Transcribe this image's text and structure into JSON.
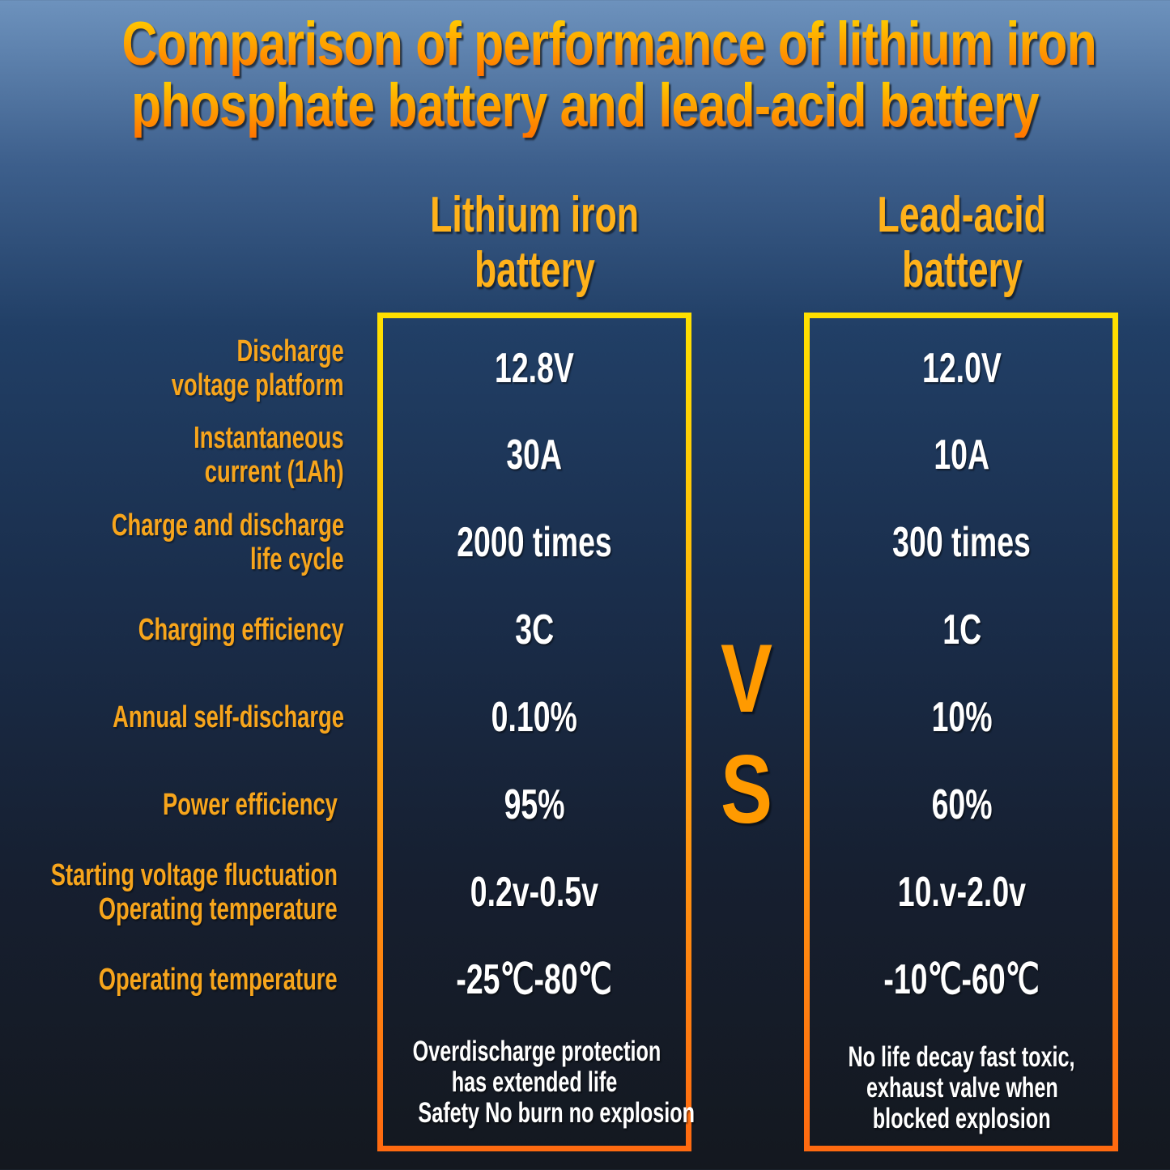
{
  "title": {
    "line1": "Comparison of performance of lithium iron",
    "line2": "phosphate battery and lead-acid battery"
  },
  "columns": [
    {
      "line1": "Lithium iron",
      "line2": "battery"
    },
    {
      "line1": "Lead-acid",
      "line2": "battery"
    }
  ],
  "vs": {
    "v": "V",
    "s": "S"
  },
  "rows": [
    {
      "label": [
        "Discharge",
        "voltage platform"
      ],
      "lithium": "12.8V",
      "lead": "12.0V"
    },
    {
      "label": [
        "Instantaneous",
        "current (1Ah)"
      ],
      "lithium": "30A",
      "lead": "10A"
    },
    {
      "label": [
        "Charge and discharge",
        "life cycle"
      ],
      "lithium": "2000 times",
      "lead": "300 times"
    },
    {
      "label": [
        "Charging efficiency"
      ],
      "lithium": "3C",
      "lead": "1C"
    },
    {
      "label": [
        "Annual self-discharge"
      ],
      "lithium": "0.10%",
      "lead": "10%"
    },
    {
      "label": [
        "Power efficiency"
      ],
      "lithium": "95%",
      "lead": "60%"
    },
    {
      "label": [
        "Starting voltage fluctuation",
        "Operating temperature"
      ],
      "lithium": "0.2v-0.5v",
      "lead": "10.v-2.0v"
    },
    {
      "label": [
        "Operating temperature"
      ],
      "lithium": "-25℃-80℃",
      "lead": "-10℃-60℃"
    }
  ],
  "notes": {
    "lithium": [
      "Overdischarge protection",
      "has extended life",
      "Safety No burn no explosion"
    ],
    "lead": [
      "No life decay fast toxic,",
      "exhaust valve when",
      "blocked explosion"
    ]
  },
  "colors": {
    "accent": "#ffa21a",
    "border_top": "#ffe000",
    "border_bottom": "#ff6a10",
    "value_text": "#ffffff"
  }
}
